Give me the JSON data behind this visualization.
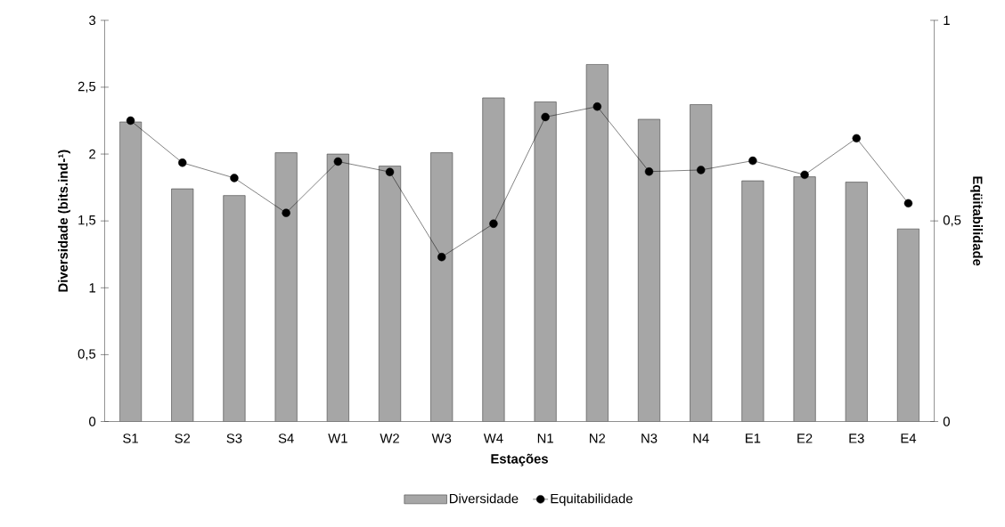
{
  "chart_data": {
    "type": "bar",
    "xlabel": "Estações",
    "ylabel": "Diversidade (bits.ind-¹)",
    "y2label": "Eqüitabilidade",
    "categories": [
      "S1",
      "S2",
      "S3",
      "S4",
      "W1",
      "W2",
      "W3",
      "W4",
      "N1",
      "N2",
      "N3",
      "N4",
      "E1",
      "E2",
      "E3",
      "E4"
    ],
    "series": [
      {
        "name": "Diversidade",
        "color": "#a6a6a6",
        "values": [
          2.24,
          1.74,
          1.69,
          2.01,
          2.0,
          1.91,
          2.01,
          2.42,
          2.39,
          2.67,
          2.26,
          2.37,
          1.8,
          1.83,
          1.79,
          1.44
        ]
      },
      {
        "name": "Equitabilidade",
        "type": "line",
        "axis": "y2",
        "color": "#000000",
        "marker": "circle",
        "line_style": "solid",
        "values": [
          0.75,
          0.645,
          0.607,
          0.52,
          0.648,
          0.622,
          0.41,
          0.493,
          0.759,
          0.785,
          0.623,
          0.627,
          0.65,
          0.615,
          0.706,
          0.544
        ]
      }
    ],
    "ylim": [
      0,
      3
    ],
    "yticks": [
      0,
      {
        "value": 0.5,
        "label": "0,5"
      },
      1,
      {
        "value": 1.5,
        "label": "1,5"
      },
      2,
      {
        "value": 2.5,
        "label": "2,5"
      },
      3
    ],
    "y2lim": [
      0,
      1
    ],
    "y2ticks": [
      0,
      {
        "value": 0.5,
        "label": "0,5"
      },
      1
    ],
    "legend": "bottom"
  }
}
